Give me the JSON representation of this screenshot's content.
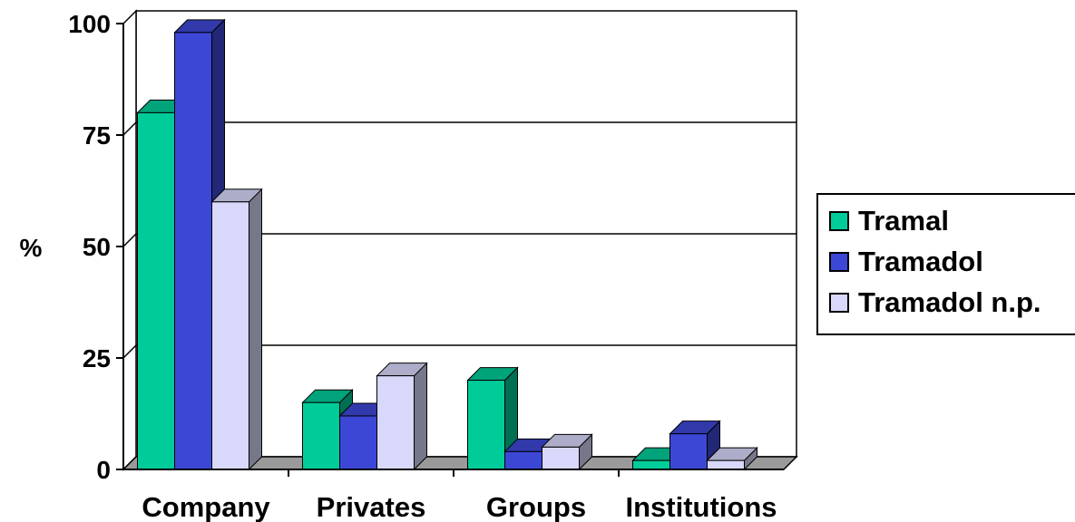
{
  "chart_data": {
    "type": "bar",
    "ylabel": "%",
    "ylim": [
      0,
      100
    ],
    "yticks": [
      0,
      25,
      50,
      75,
      100
    ],
    "grid": true,
    "legend_position": "right",
    "categories": [
      "Company",
      "Privates",
      "Groups",
      "Institutions"
    ],
    "series": [
      {
        "name": "Tramal",
        "color": "#00CC99",
        "values": [
          80,
          15,
          20,
          2
        ]
      },
      {
        "name": "Tramadol",
        "color": "#3D47D6",
        "values": [
          98,
          12,
          4,
          8
        ]
      },
      {
        "name": "Tramadol n.p.",
        "color": "#D8D8FB",
        "values": [
          60,
          21,
          5,
          2
        ]
      }
    ]
  }
}
